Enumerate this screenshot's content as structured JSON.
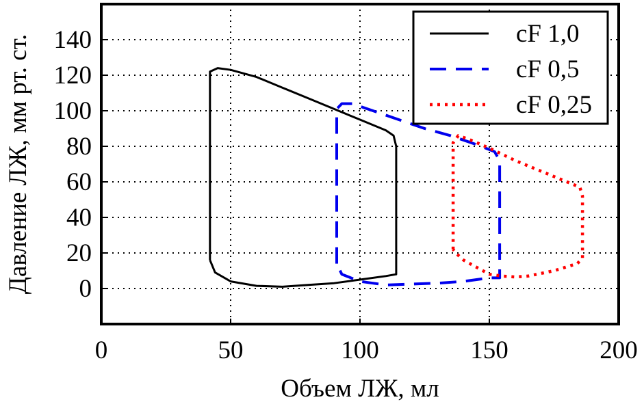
{
  "chart_data": {
    "type": "line",
    "xlabel": "Объем ЛЖ, мл",
    "ylabel": "Давление ЛЖ, мм рт. ст.",
    "xlim": [
      0,
      200
    ],
    "ylim": [
      -20,
      160
    ],
    "x_ticks": [
      0,
      50,
      100,
      150,
      200
    ],
    "x_tick_labels": [
      "0",
      "50",
      "100",
      "150",
      "200"
    ],
    "y_ticks": [
      0,
      20,
      40,
      60,
      80,
      100,
      120,
      140
    ],
    "y_tick_labels": [
      "0",
      "20",
      "40",
      "60",
      "80",
      "100",
      "120",
      "140"
    ],
    "grid": true,
    "legend_position": "top-right",
    "series": [
      {
        "name": "cF 1,0",
        "color": "#000000",
        "style": "solid",
        "points": [
          [
            42,
            16
          ],
          [
            42,
            122
          ],
          [
            45,
            124
          ],
          [
            50,
            123
          ],
          [
            60,
            119
          ],
          [
            70,
            113
          ],
          [
            80,
            107
          ],
          [
            90,
            101
          ],
          [
            100,
            95
          ],
          [
            110,
            89
          ],
          [
            113,
            86
          ],
          [
            114,
            80
          ],
          [
            114,
            8
          ],
          [
            110,
            7
          ],
          [
            100,
            5
          ],
          [
            90,
            3
          ],
          [
            80,
            2
          ],
          [
            70,
            1
          ],
          [
            60,
            1.5
          ],
          [
            50,
            4
          ],
          [
            44,
            9
          ],
          [
            42,
            16
          ]
        ]
      },
      {
        "name": "cF 0,5",
        "color": "#0000ee",
        "style": "dashed",
        "points": [
          [
            91,
            14
          ],
          [
            91,
            101
          ],
          [
            93,
            104
          ],
          [
            97,
            104
          ],
          [
            105,
            100
          ],
          [
            115,
            95
          ],
          [
            125,
            90
          ],
          [
            135,
            86
          ],
          [
            145,
            81
          ],
          [
            152,
            77
          ],
          [
            154,
            72
          ],
          [
            154,
            6
          ],
          [
            150,
            6
          ],
          [
            140,
            4
          ],
          [
            130,
            3
          ],
          [
            120,
            2.5
          ],
          [
            110,
            2
          ],
          [
            100,
            4
          ],
          [
            93,
            8
          ],
          [
            91,
            14
          ]
        ]
      },
      {
        "name": "cF 0,25",
        "color": "#ff0000",
        "style": "dotted",
        "points": [
          [
            136,
            22
          ],
          [
            136,
            82
          ],
          [
            138,
            86
          ],
          [
            142,
            84
          ],
          [
            150,
            79
          ],
          [
            160,
            72
          ],
          [
            170,
            66
          ],
          [
            180,
            60
          ],
          [
            185,
            57
          ],
          [
            186,
            52
          ],
          [
            186,
            17
          ],
          [
            184,
            14
          ],
          [
            175,
            10
          ],
          [
            165,
            7
          ],
          [
            160,
            6.5
          ],
          [
            155,
            7
          ],
          [
            150,
            8
          ],
          [
            145,
            12
          ],
          [
            140,
            16
          ],
          [
            137,
            20
          ],
          [
            136,
            22
          ]
        ]
      }
    ]
  }
}
